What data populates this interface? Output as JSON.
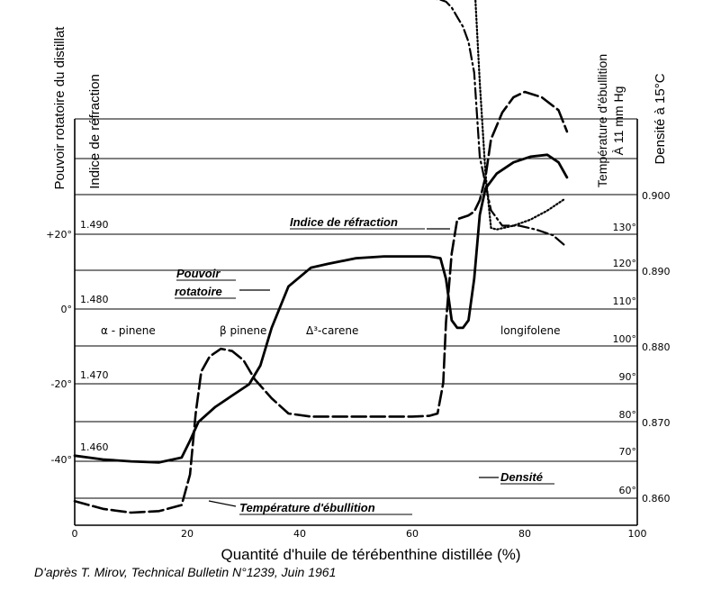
{
  "chart_data": {
    "type": "line",
    "xlabel": "Quantité d'huile de térébenthine distillée (%)",
    "x_ticks": [
      "0",
      "20",
      "40",
      "60",
      "80",
      "100"
    ],
    "xlim": [
      0,
      100
    ],
    "axes_labels": {
      "pouvoir": "Pouvoir rotatoire du distillat",
      "indice": "Indice de réfraction",
      "temp_line1": "Température d'ébullition",
      "temp_line2": "À 11 mm Hg",
      "densite": "Densité à 15°C"
    },
    "ticks": {
      "pouvoir": [
        "+20°",
        "0°",
        "-20°",
        "-40°"
      ],
      "indice": [
        "1.490",
        "1.480",
        "1.470",
        "1.460"
      ],
      "temp": [
        "130°",
        "120°",
        "110°",
        "100°",
        "90°",
        "80°",
        "70°",
        "60°"
      ],
      "densite": [
        "0.900",
        "0.890",
        "0.880",
        "0.870",
        "0.860"
      ]
    },
    "zones": [
      "α - pinene",
      "β pinene",
      "Δ³-carene",
      "longifolene"
    ],
    "series_labels": {
      "pouvoir_l1": "Pouvoir",
      "pouvoir_l2": "rotatoire",
      "indice": "Indice de réfraction",
      "densite": "Densité",
      "temperature": "Température d'ébullition"
    },
    "series": [
      {
        "name": "Pouvoir rotatoire",
        "style": "solid",
        "x": [
          0,
          5,
          10,
          15,
          19,
          20.5,
          22,
          25,
          28,
          31,
          33,
          35,
          38,
          42,
          45,
          50,
          55,
          60,
          63,
          65,
          66,
          67,
          68,
          69,
          70,
          71,
          72,
          73,
          75,
          78,
          81,
          84,
          86,
          87.5
        ],
        "y": [
          -39,
          -40,
          -40.5,
          -40.8,
          -39.5,
          -35,
          -30,
          -26,
          -23,
          -20,
          -15,
          -5,
          6,
          11,
          12,
          13.5,
          14,
          14,
          14,
          13.5,
          8,
          -3,
          -5,
          -5,
          -3,
          8,
          25,
          32,
          36,
          39,
          40.5,
          41,
          39,
          35
        ]
      },
      {
        "name": "Indice de réfraction",
        "style": "dashed",
        "x": [
          0,
          5,
          10,
          15,
          19,
          20.5,
          21.5,
          22.5,
          24,
          26,
          28,
          30,
          32,
          35,
          38,
          42,
          48,
          55,
          60,
          63,
          64.5,
          65.5,
          66,
          67,
          68,
          70,
          71,
          72,
          73,
          74,
          76,
          78,
          80,
          83,
          86,
          87.5
        ],
        "y": [
          1.4545,
          1.4535,
          1.453,
          1.4532,
          1.454,
          1.458,
          1.466,
          1.4715,
          1.4735,
          1.4745,
          1.4742,
          1.473,
          1.4705,
          1.468,
          1.466,
          1.4656,
          1.4656,
          1.4656,
          1.4656,
          1.4657,
          1.466,
          1.47,
          1.478,
          1.487,
          1.4915,
          1.492,
          1.4925,
          1.494,
          1.497,
          1.502,
          1.5055,
          1.5075,
          1.5082,
          1.5075,
          1.5058,
          1.503
        ]
      },
      {
        "name": "Densité",
        "style": "dotted",
        "x": [
          0,
          5,
          10,
          15,
          19,
          21,
          23,
          25,
          27,
          29,
          31,
          33,
          35,
          37,
          39,
          41,
          45,
          50,
          55,
          60,
          64,
          65,
          66,
          67,
          67.5,
          68,
          69,
          70,
          71,
          72,
          73,
          74,
          75,
          78,
          81,
          84,
          87
        ],
        "y": [
          0.8635,
          0.863,
          0.8628,
          0.8625,
          0.8622,
          0.8655,
          0.8695,
          0.8715,
          0.872,
          0.871,
          0.869,
          0.8665,
          0.8648,
          0.8636,
          0.863,
          0.8632,
          0.8668,
          0.8675,
          0.8675,
          0.8676,
          0.8675,
          0.866,
          0.8615,
          0.859,
          0.8585,
          0.8586,
          0.8596,
          0.8625,
          0.871,
          0.885,
          0.897,
          0.9043,
          0.9045,
          0.904,
          0.9032,
          0.902,
          0.9005
        ]
      },
      {
        "name": "Température d'ébullition",
        "style": "dashdot",
        "x": [
          0,
          5,
          10,
          15,
          20,
          23,
          26,
          29,
          32,
          35,
          38,
          42,
          46,
          50,
          55,
          60,
          63,
          65,
          66,
          67,
          68,
          69,
          70,
          71,
          72,
          74,
          76,
          79,
          82,
          85,
          87
        ],
        "y": [
          52,
          52.5,
          53.4,
          54.5,
          55.6,
          57,
          59.5,
          62,
          64,
          65.5,
          66.5,
          67.5,
          68,
          68,
          68.2,
          68.2,
          68.5,
          69,
          69.5,
          71,
          73.5,
          76,
          80,
          88,
          110,
          124,
          128,
          128,
          129,
          130.5,
          133
        ]
      }
    ]
  },
  "source_credit": "D'après T. Mirov, Technical Bulletin N°1239, Juin 1961"
}
